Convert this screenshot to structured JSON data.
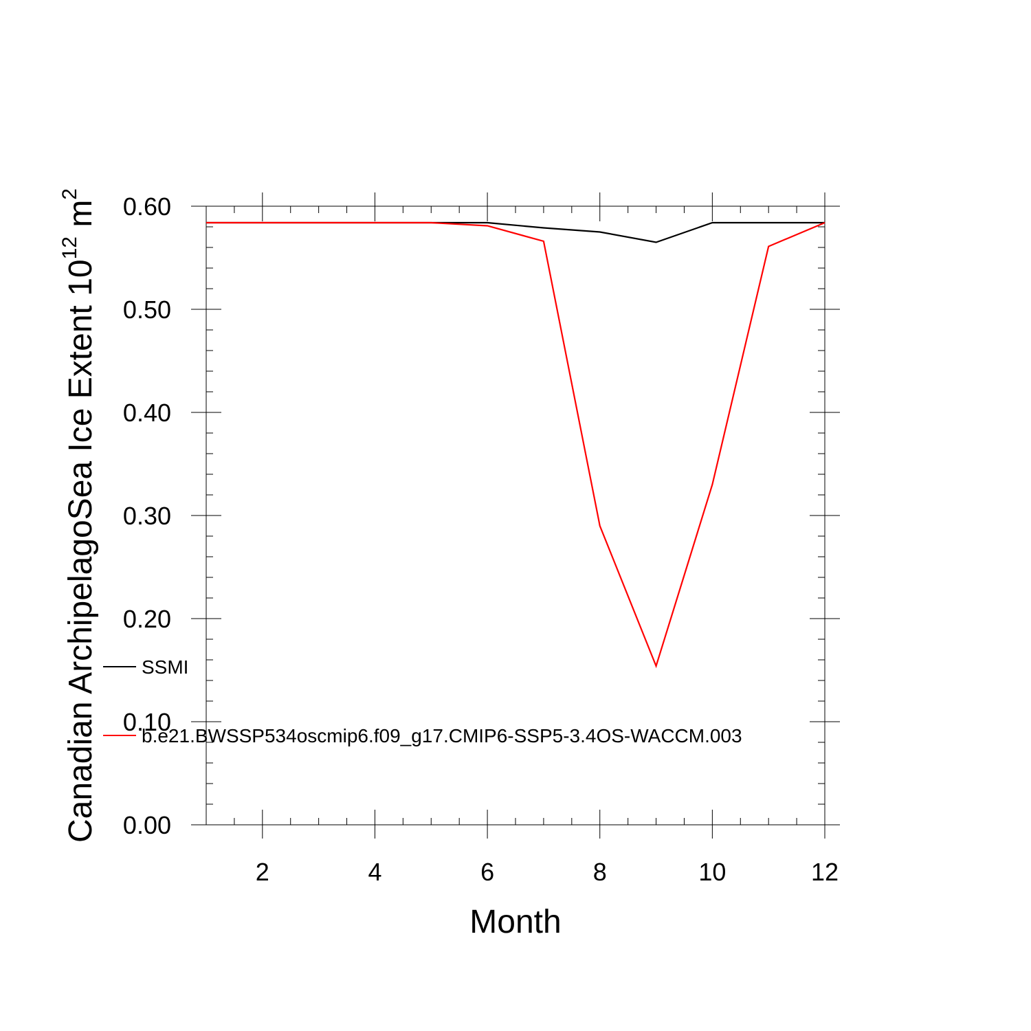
{
  "chart_data": {
    "type": "line",
    "xlabel": "Month",
    "ylabel_main": "Canadian ArchipelagoSea Ice Extent 10",
    "ylabel_exp": "12",
    "ylabel_unit": " m",
    "ylabel_unit_exp": "2",
    "xlim": [
      1,
      12
    ],
    "ylim": [
      0,
      0.6
    ],
    "x_ticks": [
      2,
      4,
      6,
      8,
      10,
      12
    ],
    "x_tick_labels": [
      "2",
      "4",
      "6",
      "8",
      "10",
      "12"
    ],
    "y_ticks": [
      0,
      0.1,
      0.2,
      0.3,
      0.4,
      0.5,
      0.6
    ],
    "y_tick_labels": [
      "0.00",
      "0.10",
      "0.20",
      "0.30",
      "0.40",
      "0.50",
      "0.60"
    ],
    "grid": false,
    "legend_position": "left-middle",
    "x": [
      1,
      2,
      3,
      4,
      5,
      6,
      7,
      8,
      9,
      10,
      11,
      12
    ],
    "series": [
      {
        "name": "SSMI",
        "color": "#000000",
        "values": [
          0.584,
          0.584,
          0.584,
          0.584,
          0.584,
          0.584,
          0.579,
          0.575,
          0.565,
          0.584,
          0.584,
          0.584
        ]
      },
      {
        "name": "b.e21.BWSSP534oscmip6.f09_g17.CMIP6-SSP5-3.4OS-WACCM.003",
        "color": "#ff0000",
        "values": [
          0.584,
          0.584,
          0.584,
          0.584,
          0.584,
          0.581,
          0.566,
          0.29,
          0.154,
          0.33,
          0.561,
          0.584
        ]
      }
    ]
  }
}
